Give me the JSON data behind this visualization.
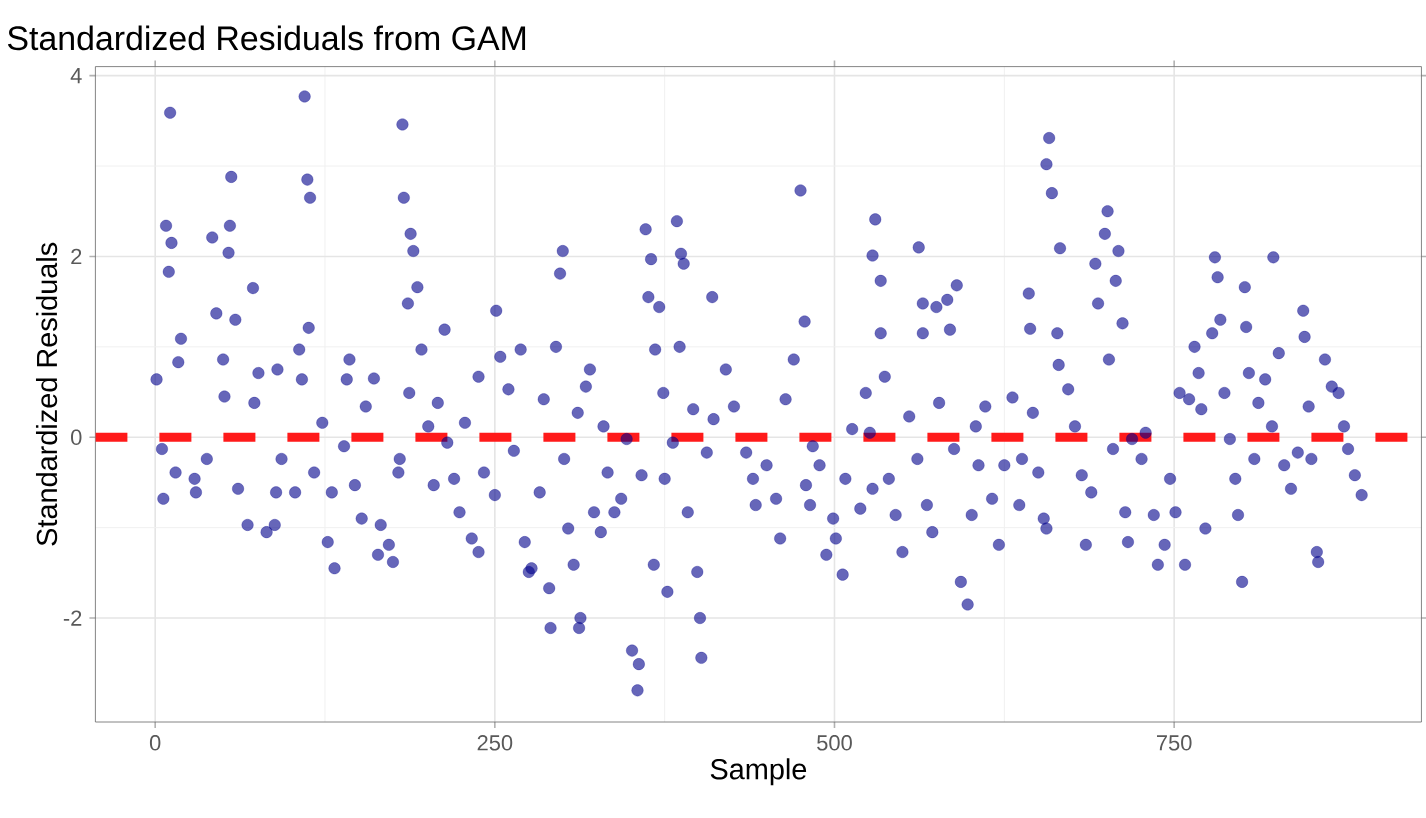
{
  "chart_data": {
    "type": "scatter",
    "title": "Standardized Residuals from GAM",
    "xlabel": "Sample",
    "ylabel": "Standardized Residuals",
    "xlim": [
      -44,
      932
    ],
    "ylim": [
      -3.15,
      4.1
    ],
    "xticks": [
      0,
      250,
      500,
      750
    ],
    "yticks": [
      -2,
      0,
      2,
      4
    ],
    "grid": true,
    "marker": "circle",
    "ref_lines": [
      {
        "axis": "y",
        "value": 0,
        "color": "#ff1a1a",
        "line_style": "dashed"
      }
    ],
    "series": [
      {
        "color": "#00008b",
        "x": [
          1,
          11,
          8,
          12,
          10,
          17,
          19,
          6,
          5,
          15,
          30,
          29,
          38,
          42,
          45,
          56,
          54,
          55,
          50,
          51,
          59,
          61,
          68,
          72,
          76,
          82,
          88,
          73,
          89,
          90,
          93,
          103,
          106,
          110,
          112,
          114,
          113,
          108,
          117,
          123,
          127,
          132,
          130,
          139,
          141,
          143,
          147,
          152,
          155,
          161,
          164,
          166,
          172,
          175,
          179,
          180,
          182,
          183,
          186,
          187,
          188,
          190,
          193,
          196,
          201,
          205,
          208,
          213,
          215,
          220,
          224,
          228,
          233,
          238,
          238,
          242,
          250,
          251,
          254,
          260,
          264,
          269,
          272,
          275,
          277,
          283,
          286,
          290,
          291,
          295,
          298,
          300,
          301,
          304,
          308,
          311,
          312,
          313,
          317,
          320,
          323,
          328,
          330,
          333,
          338,
          343,
          347,
          351,
          355,
          356,
          358,
          361,
          363,
          365,
          367,
          368,
          371,
          374,
          375,
          377,
          381,
          384,
          387,
          389,
          386,
          392,
          396,
          399,
          401,
          402,
          406,
          410,
          411,
          420,
          426,
          435,
          440,
          442,
          450,
          457,
          460,
          464,
          470,
          475,
          478,
          479,
          482,
          484,
          489,
          494,
          499,
          501,
          506,
          508,
          513,
          519,
          523,
          526,
          528,
          530,
          528,
          534,
          534,
          537,
          540,
          545,
          550,
          555,
          561,
          562,
          565,
          565,
          568,
          572,
          575,
          577,
          583,
          585,
          588,
          590,
          593,
          598,
          601,
          604,
          606,
          611,
          616,
          621,
          625,
          631,
          636,
          638,
          643,
          644,
          646,
          650,
          654,
          656,
          658,
          656,
          660,
          666,
          664,
          665,
          672,
          677,
          682,
          685,
          689,
          692,
          694,
          699,
          701,
          702,
          705,
          707,
          709,
          712,
          714,
          716,
          719,
          726,
          729,
          735,
          738,
          743,
          747,
          751,
          754,
          758,
          761,
          765,
          768,
          770,
          773,
          778,
          780,
          782,
          784,
          787,
          791,
          795,
          797,
          800,
          802,
          803,
          805,
          809,
          812,
          817,
          822,
          823,
          827,
          831,
          836,
          841,
          845,
          846,
          849,
          851,
          855,
          856,
          861,
          866,
          871,
          875,
          878,
          883,
          888
        ],
        "values": [
          0.64,
          3.59,
          2.34,
          2.15,
          1.83,
          0.83,
          1.09,
          -0.68,
          -0.13,
          -0.39,
          -0.61,
          -0.46,
          -0.24,
          2.21,
          1.37,
          2.88,
          2.04,
          2.34,
          0.86,
          0.45,
          1.3,
          -0.57,
          -0.97,
          1.65,
          0.71,
          -1.05,
          -0.97,
          0.38,
          -0.61,
          0.75,
          -0.24,
          -0.61,
          0.97,
          3.77,
          2.85,
          2.65,
          1.21,
          0.64,
          -0.39,
          0.16,
          -1.16,
          -1.45,
          -0.61,
          -0.1,
          0.64,
          0.86,
          -0.53,
          -0.9,
          0.34,
          0.65,
          -1.3,
          -0.97,
          -1.19,
          -1.38,
          -0.39,
          -0.24,
          3.46,
          2.65,
          1.48,
          0.49,
          2.25,
          2.06,
          1.66,
          0.97,
          0.12,
          -0.53,
          0.38,
          1.19,
          -0.06,
          -0.46,
          -0.83,
          0.16,
          -1.12,
          -1.27,
          0.67,
          -0.39,
          -0.64,
          1.4,
          0.89,
          0.53,
          -0.15,
          0.97,
          -1.16,
          -1.49,
          -1.45,
          -0.61,
          0.42,
          -1.67,
          -2.11,
          1.0,
          1.81,
          2.06,
          -0.24,
          -1.01,
          -1.41,
          0.27,
          -2.11,
          -2.0,
          0.56,
          0.75,
          -0.83,
          -1.05,
          0.12,
          -0.39,
          -0.83,
          -0.68,
          -0.02,
          -2.36,
          -2.8,
          -2.51,
          -0.42,
          2.3,
          1.55,
          1.97,
          -1.41,
          0.97,
          1.44,
          0.49,
          -0.46,
          -1.71,
          -0.06,
          2.39,
          2.03,
          1.92,
          1.0,
          -0.83,
          0.31,
          -1.49,
          -2.0,
          -2.44,
          -0.17,
          1.55,
          0.2,
          0.75,
          0.34,
          -0.17,
          -0.46,
          -0.75,
          -0.31,
          -0.68,
          -1.12,
          0.42,
          0.86,
          2.73,
          1.28,
          -0.53,
          -0.75,
          -0.1,
          -0.31,
          -1.3,
          -0.9,
          -1.12,
          -1.52,
          -0.46,
          0.09,
          -0.79,
          0.49,
          0.05,
          -0.57,
          2.41,
          2.01,
          1.73,
          1.15,
          0.67,
          -0.46,
          -0.86,
          -1.27,
          0.23,
          -0.24,
          2.1,
          1.48,
          1.15,
          -0.75,
          -1.05,
          1.44,
          0.38,
          1.52,
          1.19,
          -0.13,
          1.68,
          -1.6,
          -1.85,
          -0.86,
          0.12,
          -0.31,
          0.34,
          -0.68,
          -1.19,
          -0.31,
          0.44,
          -0.75,
          -0.24,
          1.59,
          1.2,
          0.27,
          -0.39,
          -0.9,
          -1.01,
          3.31,
          3.02,
          2.7,
          2.09,
          1.15,
          0.8,
          0.53,
          0.12,
          -0.42,
          -1.19,
          -0.61,
          1.92,
          1.48,
          2.25,
          2.5,
          0.86,
          -0.13,
          1.73,
          2.06,
          1.26,
          -0.83,
          -1.16,
          -0.02,
          -0.24,
          0.05,
          -0.86,
          -1.41,
          -1.19,
          -0.46,
          -0.83,
          0.49,
          -1.41,
          0.42,
          1.0,
          0.71,
          0.31,
          -1.01,
          1.15,
          1.99,
          1.77,
          1.3,
          0.49,
          -0.02,
          -0.46,
          -0.86,
          -1.6,
          1.66,
          1.22,
          0.71,
          -0.24,
          0.38,
          0.64,
          0.12,
          1.99,
          0.93,
          -0.31,
          -0.57,
          -0.17,
          1.4,
          1.11,
          0.34,
          -0.24,
          -1.27,
          -1.38,
          0.86,
          0.56,
          0.49,
          0.12,
          -0.13,
          -0.42,
          -0.64
        ]
      }
    ]
  }
}
